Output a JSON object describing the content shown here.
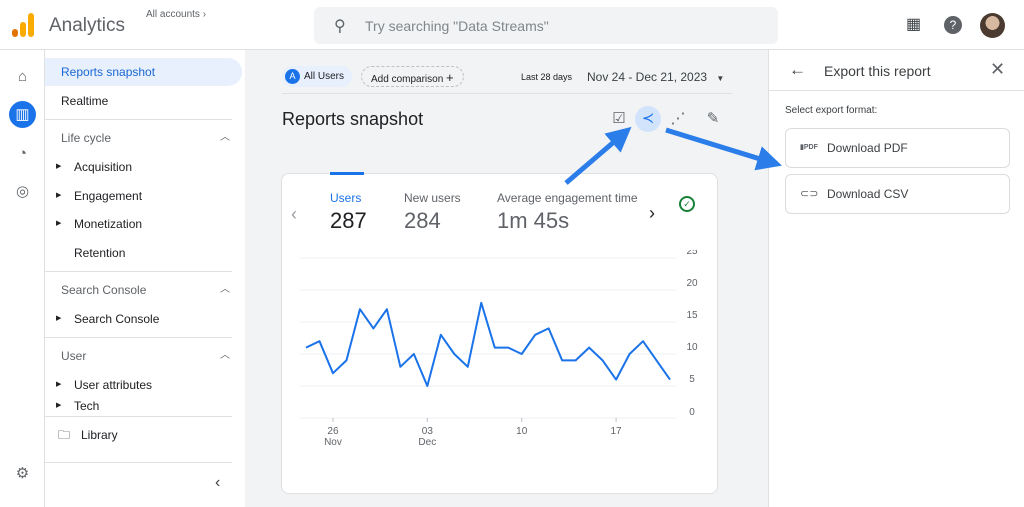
{
  "header": {
    "app_title": "Analytics",
    "accounts_label": "All accounts",
    "search_placeholder": "Try searching \"Data Streams\""
  },
  "nav": {
    "items": [
      {
        "label": "Reports snapshot"
      },
      {
        "label": "Realtime"
      },
      {
        "label": "Life cycle"
      },
      {
        "label": "Acquisition"
      },
      {
        "label": "Engagement"
      },
      {
        "label": "Monetization"
      },
      {
        "label": "Retention"
      },
      {
        "label": "Search Console"
      },
      {
        "label": "Search Console"
      },
      {
        "label": "User"
      },
      {
        "label": "User attributes"
      },
      {
        "label": "Tech"
      },
      {
        "label": "Library"
      }
    ]
  },
  "toolbar": {
    "segment_letter": "A",
    "segment": "All Users",
    "add_comparison": "Add comparison",
    "range_label": "Last 28 days",
    "date_range": "Nov 24 - Dec 21, 2023"
  },
  "page": {
    "title": "Reports snapshot"
  },
  "metrics": [
    {
      "label": "Users",
      "value": "287"
    },
    {
      "label": "New users",
      "value": "284"
    },
    {
      "label": "Average engagement time",
      "value": "1m 45s"
    }
  ],
  "chart_data": {
    "type": "line",
    "series": [
      {
        "values": [
          11,
          12,
          7,
          9,
          17,
          14,
          17,
          8,
          10,
          5,
          13,
          10,
          8,
          18,
          11,
          11,
          10,
          13,
          14,
          9,
          9,
          11,
          9,
          6,
          10,
          12,
          9,
          6
        ]
      }
    ],
    "x": [
      "Nov 24",
      "Nov 25",
      "Nov 26",
      "Nov 27",
      "Nov 28",
      "Nov 29",
      "Nov 30",
      "Dec 1",
      "Dec 2",
      "Dec 3",
      "Dec 4",
      "Dec 5",
      "Dec 6",
      "Dec 7",
      "Dec 8",
      "Dec 9",
      "Dec 10",
      "Dec 11",
      "Dec 12",
      "Dec 13",
      "Dec 14",
      "Dec 15",
      "Dec 16",
      "Dec 17",
      "Dec 18",
      "Dec 19",
      "Dec 20",
      "Dec 21"
    ],
    "x_ticks": [
      {
        "i": 2,
        "label": "26",
        "sub": "Nov"
      },
      {
        "i": 9,
        "label": "03",
        "sub": "Dec"
      },
      {
        "i": 16,
        "label": "10",
        "sub": ""
      },
      {
        "i": 23,
        "label": "17",
        "sub": ""
      }
    ],
    "y_ticks": [
      "0",
      "5",
      "10",
      "15",
      "20",
      "25"
    ],
    "ylim": [
      0,
      25
    ],
    "grid": true,
    "color": "#1a73e8"
  },
  "panel": {
    "title": "Export this report",
    "subtitle": "Select export format:",
    "options": [
      {
        "label": "Download PDF",
        "icon": "pdf-icon"
      },
      {
        "label": "Download CSV",
        "icon": "paperclip-icon"
      }
    ]
  },
  "colors": {
    "accent": "#1a73e8",
    "selected_bg": "#e8f0fe",
    "arrow": "#2b7de9"
  }
}
